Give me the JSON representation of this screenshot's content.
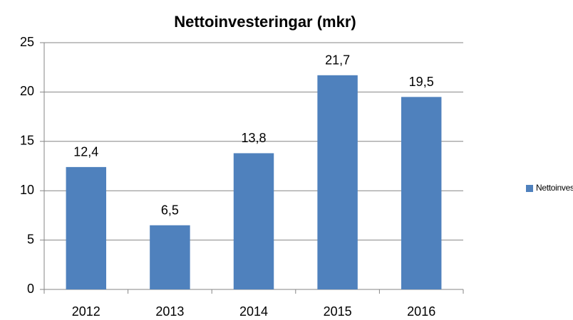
{
  "chart_data": {
    "type": "bar",
    "title": "Nettoinvesteringar (mkr)",
    "categories": [
      "2012",
      "2013",
      "2014",
      "2015",
      "2016"
    ],
    "series": [
      {
        "name": "Nettoinvesteringar",
        "color": "#4f81bd",
        "values": [
          12.4,
          6.5,
          13.8,
          21.7,
          19.5
        ],
        "value_labels": [
          "12,4",
          "6,5",
          "13,8",
          "21,7",
          "19,5"
        ]
      }
    ],
    "ylim": [
      0,
      25
    ],
    "yticks": [
      0,
      5,
      10,
      15,
      20,
      25
    ],
    "grid": true,
    "legend": "right"
  }
}
